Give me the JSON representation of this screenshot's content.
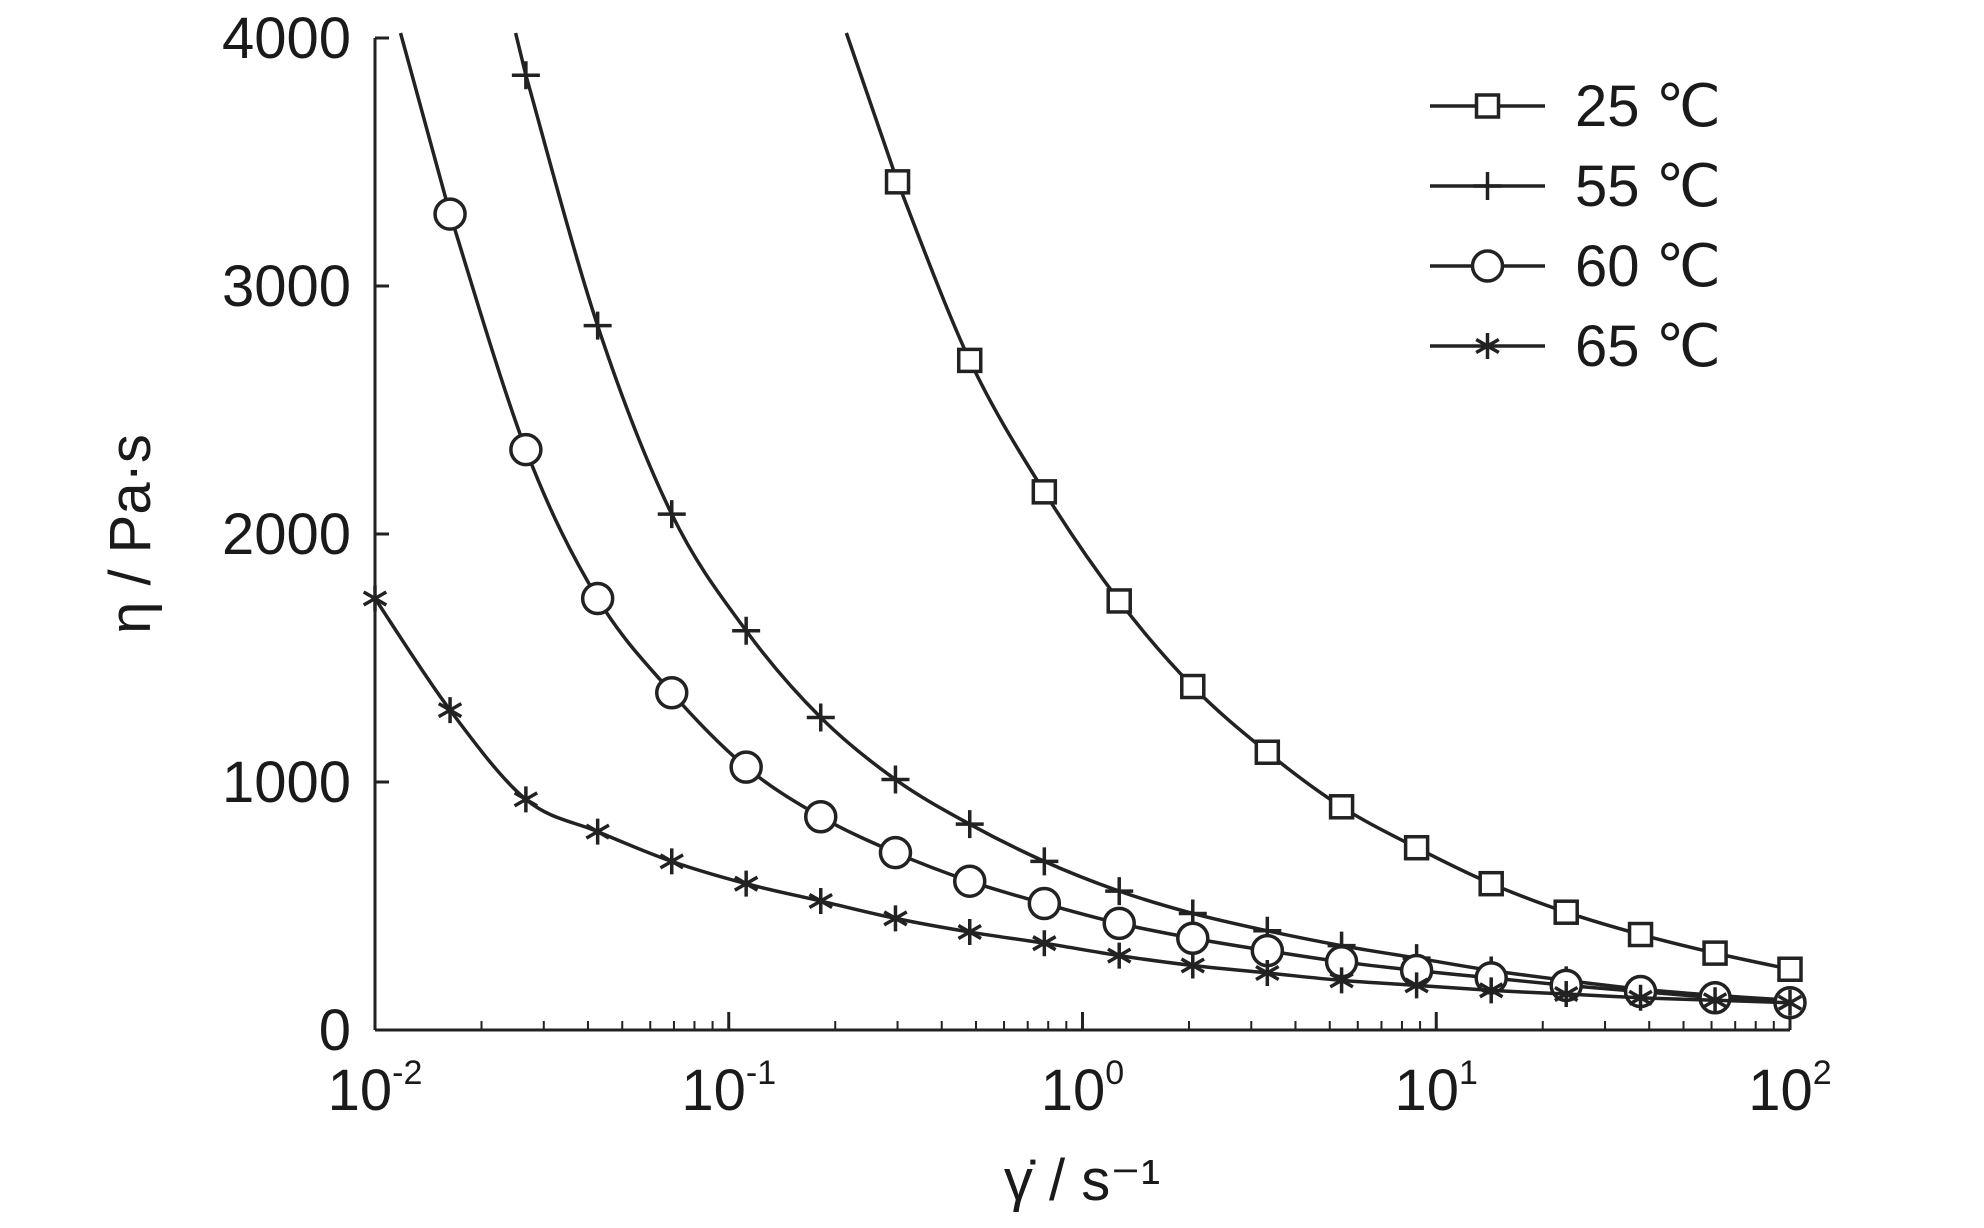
{
  "chart_data": {
    "type": "line",
    "x_scale": "log",
    "xlabel": "γ̇ / s⁻¹",
    "ylabel": "η / Pa·s",
    "xlim": [
      0.01,
      100
    ],
    "ylim": [
      0,
      4000
    ],
    "x_ticks": [
      {
        "value": 0.01,
        "base": "10",
        "exp": "-2"
      },
      {
        "value": 0.1,
        "base": "10",
        "exp": "-1"
      },
      {
        "value": 1,
        "base": "10",
        "exp": "0"
      },
      {
        "value": 10,
        "base": "10",
        "exp": "1"
      },
      {
        "value": 100,
        "base": "10",
        "exp": "2"
      }
    ],
    "y_ticks": [
      {
        "value": 0,
        "label": "0"
      },
      {
        "value": 1000,
        "label": "1000"
      },
      {
        "value": 2000,
        "label": "2000"
      },
      {
        "value": 3000,
        "label": "3000"
      },
      {
        "value": 4000,
        "label": "4000"
      }
    ],
    "grid": false,
    "legend_position": "top-right",
    "series": [
      {
        "name": "25 ℃",
        "marker": "square",
        "x": [
          0.3,
          0.48,
          0.78,
          1.27,
          2.05,
          3.33,
          5.4,
          8.8,
          14.3,
          23.3,
          37.8,
          61.4,
          100
        ],
        "y": [
          3420,
          2700,
          2170,
          1730,
          1385,
          1120,
          900,
          735,
          590,
          475,
          385,
          310,
          245
        ]
      },
      {
        "name": "55 ℃",
        "marker": "plus",
        "x": [
          0.0267,
          0.0426,
          0.069,
          0.112,
          0.182,
          0.296,
          0.48,
          0.78,
          1.27,
          2.05,
          3.33,
          5.4,
          8.8,
          14.3,
          23.3,
          37.8,
          61.4,
          100
        ],
        "y": [
          3850,
          2840,
          2080,
          1610,
          1260,
          1010,
          830,
          680,
          560,
          470,
          400,
          340,
          290,
          240,
          200,
          165,
          140,
          120
        ]
      },
      {
        "name": "60 ℃",
        "marker": "circle",
        "x": [
          0.0163,
          0.0267,
          0.0426,
          0.069,
          0.112,
          0.182,
          0.296,
          0.48,
          0.78,
          1.27,
          2.05,
          3.33,
          5.4,
          8.8,
          14.3,
          23.3,
          37.8,
          61.4,
          100
        ],
        "y": [
          3290,
          2340,
          1740,
          1360,
          1060,
          860,
          715,
          600,
          510,
          430,
          370,
          320,
          275,
          240,
          210,
          180,
          155,
          130,
          110
        ]
      },
      {
        "name": "65 ℃",
        "marker": "asterisk",
        "x": [
          0.01,
          0.0163,
          0.0267,
          0.0426,
          0.069,
          0.112,
          0.182,
          0.296,
          0.48,
          0.78,
          1.27,
          2.05,
          3.33,
          5.4,
          8.8,
          14.3,
          23.3,
          37.8,
          61.4,
          100
        ],
        "y": [
          1740,
          1290,
          930,
          800,
          680,
          590,
          520,
          450,
          395,
          350,
          300,
          260,
          230,
          200,
          180,
          160,
          145,
          130,
          120,
          110
        ]
      }
    ]
  }
}
